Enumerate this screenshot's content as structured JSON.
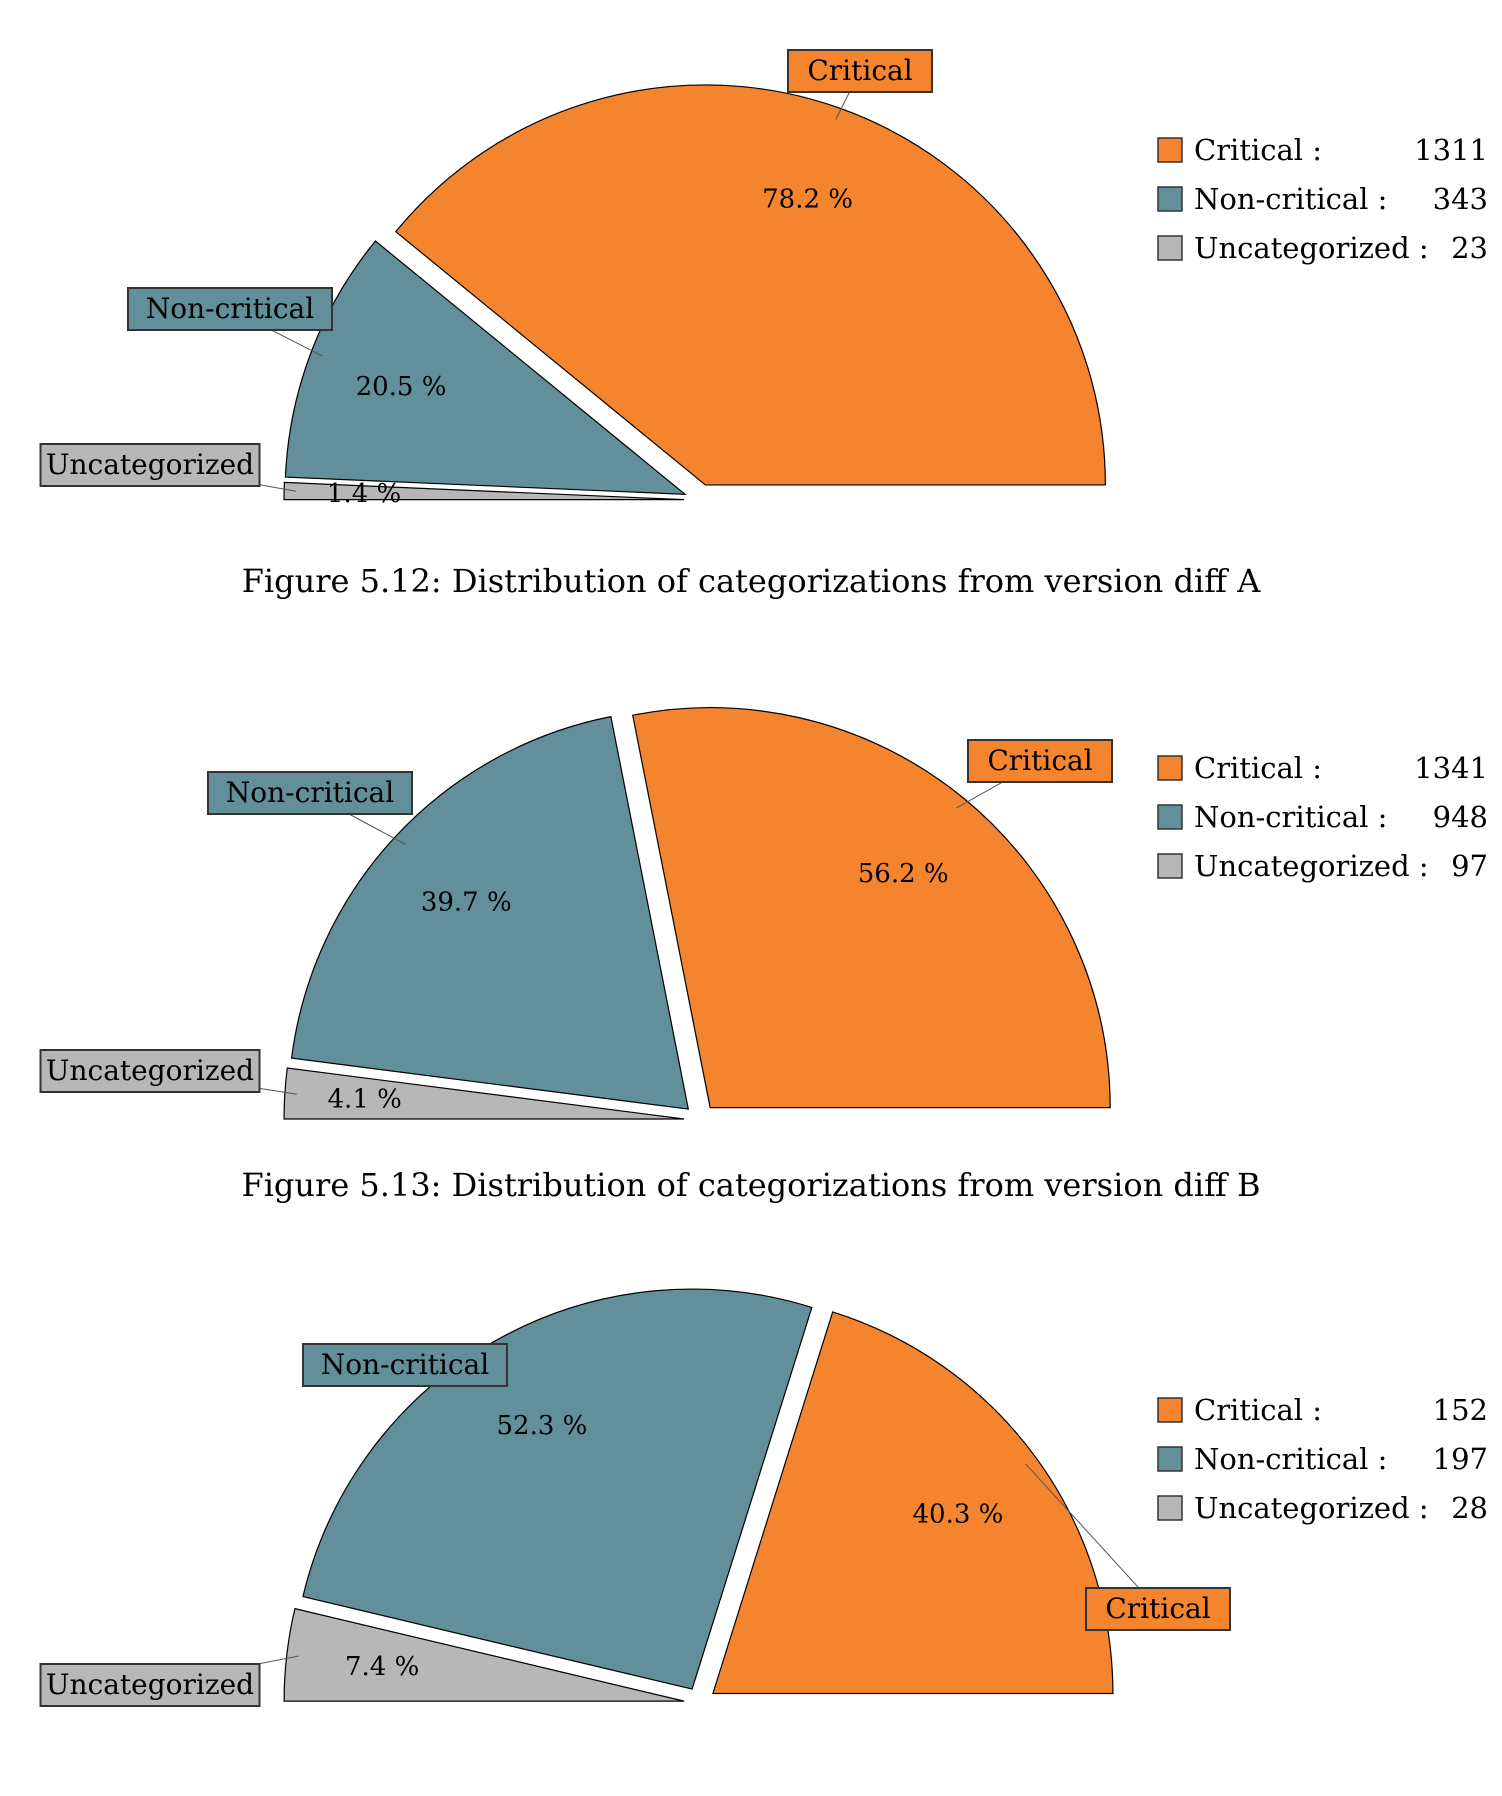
{
  "chart_data": [
    {
      "type": "pie",
      "style": "half-pie-exploded",
      "caption": "Figure 5.12: Distribution of categorizations from version diff A",
      "slices": [
        {
          "label": "Critical",
          "legend_label": "Critical :",
          "value": 1311,
          "percent_label": "78.2 %",
          "color": "#f5842e"
        },
        {
          "label": "Non-critical",
          "legend_label": "Non-critical :",
          "value": 343,
          "percent_label": "20.5 %",
          "color": "#628f99"
        },
        {
          "label": "Uncategorized",
          "legend_label": "Uncategorized :",
          "value": 23,
          "percent_label": "1.4 %",
          "color": "#b7b7b7"
        }
      ],
      "legend_position": "top-right"
    },
    {
      "type": "pie",
      "style": "half-pie-exploded",
      "caption": "Figure 5.13: Distribution of categorizations from version diff B",
      "slices": [
        {
          "label": "Critical",
          "legend_label": "Critical :",
          "value": 1341,
          "percent_label": "56.2 %",
          "color": "#f5842e"
        },
        {
          "label": "Non-critical",
          "legend_label": "Non-critical :",
          "value": 948,
          "percent_label": "39.7 %",
          "color": "#628f99"
        },
        {
          "label": "Uncategorized",
          "legend_label": "Uncategorized :",
          "value": 97,
          "percent_label": "4.1 %",
          "color": "#b7b7b7"
        }
      ],
      "legend_position": "top-right"
    },
    {
      "type": "pie",
      "style": "half-pie-exploded",
      "caption": "",
      "slices": [
        {
          "label": "Critical",
          "legend_label": "Critical :",
          "value": 152,
          "percent_label": "40.3 %",
          "color": "#f5842e"
        },
        {
          "label": "Non-critical",
          "legend_label": "Non-critical :",
          "value": 197,
          "percent_label": "52.3 %",
          "color": "#628f99"
        },
        {
          "label": "Uncategorized",
          "legend_label": "Uncategorized :",
          "value": 28,
          "percent_label": "7.4 %",
          "color": "#b7b7b7"
        }
      ],
      "legend_position": "top-right"
    }
  ]
}
